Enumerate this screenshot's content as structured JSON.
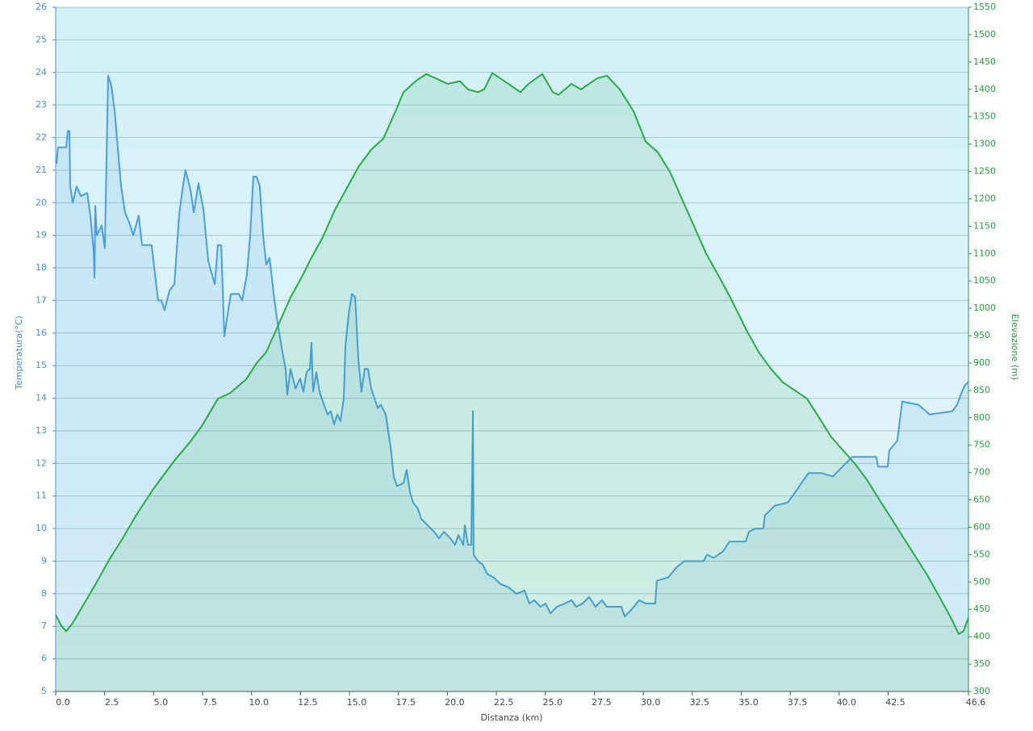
{
  "chart_data": {
    "type": "line",
    "x_label": "Distanza  (km)",
    "y_label": "Temperatura(°C)",
    "y2_label": "Elevazione (m)",
    "xlim": [
      0,
      46.6
    ],
    "xticks": [
      {
        "value": 0,
        "label": "0.0"
      },
      2.5,
      {
        "value": 5,
        "label": "5.0"
      },
      7.5,
      {
        "value": 10,
        "label": "10.0"
      },
      12.5,
      {
        "value": 15,
        "label": "15.0"
      },
      17.5,
      {
        "value": 20,
        "label": "20.0"
      },
      22.5,
      {
        "value": 25,
        "label": "25.0"
      },
      27.5,
      {
        "value": 30,
        "label": "30.0"
      },
      32.5,
      {
        "value": 35,
        "label": "35.0"
      },
      37.5,
      {
        "value": 40,
        "label": "40.0"
      },
      42.5,
      46.6
    ],
    "ylim": [
      5,
      26
    ],
    "yticks": [
      5,
      6,
      7,
      8,
      9,
      10,
      11,
      12,
      13,
      14,
      15,
      16,
      17,
      18,
      19,
      20,
      21,
      22,
      23,
      24,
      25,
      26
    ],
    "y2lim": [
      300,
      1550
    ],
    "y2ticks": [
      300,
      350,
      400,
      450,
      500,
      550,
      600,
      650,
      700,
      750,
      800,
      850,
      900,
      950,
      1000,
      1050,
      1100,
      1150,
      1200,
      1250,
      1300,
      1350,
      1400,
      1450,
      1500,
      1550
    ],
    "grid": true,
    "series": [
      {
        "name": "Temperatura",
        "color": "#4a9de0",
        "axis": "y",
        "x": [
          0.04,
          0.12,
          0.54,
          0.62,
          0.7,
          0.74,
          0.87,
          1.07,
          1.28,
          1.61,
          1.77,
          1.94,
          1.98,
          2.02,
          2.1,
          2.35,
          2.51,
          2.68,
          2.84,
          3.01,
          3.17,
          3.34,
          3.54,
          3.75,
          3.96,
          4.24,
          4.41,
          4.9,
          5.07,
          5.23,
          5.4,
          5.56,
          5.81,
          6.06,
          6.3,
          6.47,
          6.63,
          6.88,
          7.05,
          7.29,
          7.54,
          7.79,
          8.12,
          8.28,
          8.45,
          8.61,
          8.78,
          8.94,
          9.35,
          9.52,
          9.76,
          9.93,
          10.09,
          10.26,
          10.42,
          10.59,
          10.75,
          10.92,
          11.17,
          11.33,
          11.58,
          11.74,
          11.82,
          11.99,
          12.24,
          12.48,
          12.65,
          12.81,
          12.98,
          13.06,
          13.14,
          13.31,
          13.47,
          13.64,
          13.88,
          14.05,
          14.21,
          14.38,
          14.54,
          14.71,
          14.79,
          14.96,
          15.12,
          15.29,
          15.45,
          15.61,
          15.78,
          15.94,
          16.11,
          16.27,
          16.44,
          16.6,
          16.85,
          17.1,
          17.26,
          17.43,
          17.76,
          17.92,
          18.09,
          18.25,
          18.5,
          18.66,
          18.99,
          19.32,
          19.57,
          19.82,
          20.15,
          20.39,
          20.56,
          20.81,
          20.89,
          21.05,
          21.22,
          21.3,
          21.34,
          21.55,
          21.79,
          22.04,
          22.37,
          22.7,
          23.11,
          23.53,
          23.94,
          24.18,
          24.43,
          24.76,
          25.01,
          25.26,
          25.59,
          26.0,
          26.33,
          26.57,
          26.9,
          27.23,
          27.56,
          27.89,
          28.14,
          28.88,
          29.05,
          29.38,
          29.79,
          30.12,
          30.61,
          30.69,
          31.27,
          31.68,
          32.09,
          33.08,
          33.25,
          33.58,
          34.07,
          34.4,
          35.23,
          35.39,
          35.72,
          36.13,
          36.21,
          36.71,
          37.37,
          37.86,
          38.19,
          38.44,
          39.1,
          39.68,
          40.17,
          40.66,
          41.9,
          41.98,
          42.48,
          42.56,
          42.97,
          43.22,
          44.04,
          44.62,
          45.77,
          46.02,
          46.27,
          46.43,
          46.6
        ],
        "values": [
          21.2,
          21.7,
          21.7,
          22.2,
          22.2,
          20.5,
          20.0,
          20.5,
          20.2,
          20.3,
          19.6,
          18.5,
          17.7,
          19.9,
          19.0,
          19.3,
          18.6,
          23.9,
          23.6,
          22.8,
          21.7,
          20.5,
          19.7,
          19.4,
          19.0,
          19.6,
          18.7,
          18.7,
          17.8,
          17.0,
          17.0,
          16.7,
          17.3,
          17.5,
          19.6,
          20.4,
          21.0,
          20.4,
          19.7,
          20.6,
          19.8,
          18.2,
          17.5,
          18.7,
          18.7,
          15.9,
          16.6,
          17.2,
          17.2,
          17.0,
          17.8,
          19.0,
          20.8,
          20.8,
          20.5,
          19.0,
          18.1,
          18.3,
          17.0,
          16.3,
          15.4,
          14.9,
          14.1,
          14.9,
          14.3,
          14.6,
          14.2,
          14.8,
          14.9,
          15.7,
          14.2,
          14.8,
          14.2,
          13.9,
          13.5,
          13.6,
          13.2,
          13.5,
          13.3,
          14.0,
          15.6,
          16.6,
          17.2,
          17.1,
          15.2,
          14.2,
          14.9,
          14.9,
          14.3,
          14.0,
          13.7,
          13.8,
          13.5,
          12.5,
          11.6,
          11.3,
          11.4,
          11.8,
          11.1,
          10.8,
          10.6,
          10.3,
          10.1,
          9.9,
          9.7,
          9.9,
          9.7,
          9.5,
          9.8,
          9.5,
          10.1,
          9.5,
          9.5,
          13.6,
          9.2,
          9.0,
          8.9,
          8.6,
          8.5,
          8.3,
          8.2,
          8.0,
          8.1,
          7.7,
          7.8,
          7.6,
          7.7,
          7.4,
          7.6,
          7.7,
          7.8,
          7.6,
          7.7,
          7.9,
          7.6,
          7.8,
          7.6,
          7.6,
          7.3,
          7.5,
          7.8,
          7.7,
          7.7,
          8.4,
          8.5,
          8.8,
          9.0,
          9.0,
          9.2,
          9.1,
          9.3,
          9.6,
          9.6,
          9.9,
          10.0,
          10.0,
          10.4,
          10.7,
          10.8,
          11.2,
          11.5,
          11.7,
          11.7,
          11.6,
          11.9,
          12.2,
          12.2,
          11.9,
          11.9,
          12.4,
          12.7,
          13.9,
          13.8,
          13.5,
          13.6,
          13.8,
          14.2,
          14.4,
          14.5
        ]
      },
      {
        "name": "Elevazione",
        "color": "#2aaa45",
        "axis": "y2",
        "x": [
          0,
          0.29,
          0.54,
          0.87,
          1.28,
          2.02,
          2.72,
          3.34,
          4.16,
          4.99,
          6.02,
          6.84,
          7.46,
          8.28,
          8.9,
          9.72,
          10.26,
          10.75,
          11.37,
          11.99,
          12.61,
          13.02,
          13.64,
          14.26,
          14.87,
          15.49,
          16.11,
          16.73,
          17.35,
          17.76,
          18.38,
          18.91,
          19.41,
          20.02,
          20.64,
          21.05,
          21.55,
          21.88,
          22.29,
          22.91,
          23.73,
          24.14,
          24.84,
          25.38,
          25.67,
          26.33,
          26.82,
          27.64,
          28.14,
          28.8,
          29.5,
          30.12,
          30.74,
          31.35,
          31.97,
          32.59,
          33.21,
          33.83,
          34.44,
          35.27,
          35.89,
          36.5,
          37.12,
          37.74,
          38.36,
          38.98,
          39.59,
          40.21,
          40.83,
          41.45,
          42.06,
          42.68,
          43.3,
          43.92,
          44.54,
          45.16,
          45.77,
          46.1,
          46.35,
          46.6
        ],
        "values": [
          440,
          420,
          410,
          425,
          450,
          495,
          540,
          575,
          625,
          670,
          720,
          755,
          785,
          835,
          845,
          870,
          900,
          920,
          970,
          1020,
          1060,
          1090,
          1130,
          1180,
          1220,
          1260,
          1290,
          1310,
          1360,
          1395,
          1415,
          1428,
          1420,
          1410,
          1415,
          1400,
          1395,
          1400,
          1430,
          1415,
          1395,
          1410,
          1428,
          1395,
          1390,
          1410,
          1400,
          1420,
          1425,
          1400,
          1360,
          1305,
          1285,
          1250,
          1200,
          1150,
          1100,
          1060,
          1020,
          960,
          920,
          890,
          865,
          850,
          835,
          800,
          765,
          740,
          715,
          685,
          650,
          615,
          580,
          545,
          510,
          470,
          430,
          405,
          410,
          435
        ]
      }
    ]
  }
}
